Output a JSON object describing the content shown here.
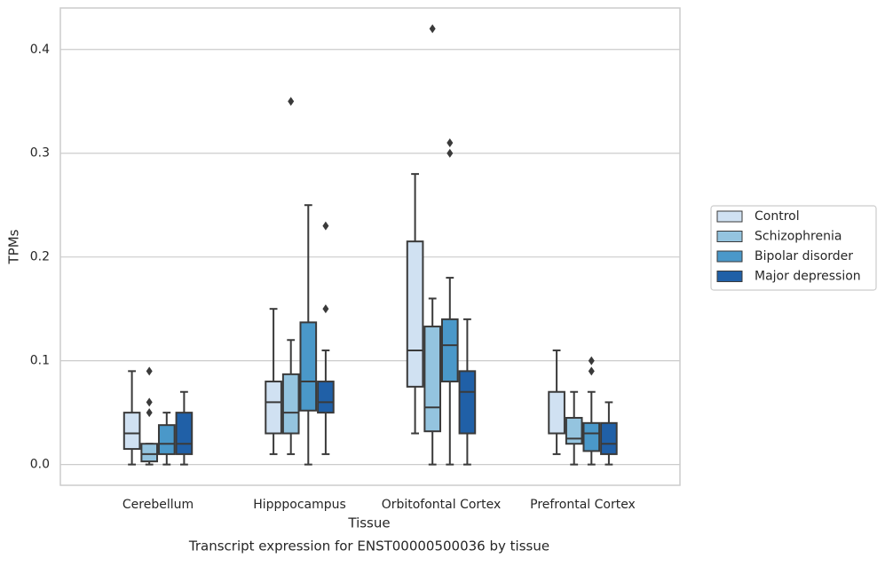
{
  "chart_data": {
    "type": "box",
    "title": "Transcript expression for ENST00000500036 by tissue",
    "x_label": "Tissue",
    "y_label": "TPMs",
    "categories": [
      "Cerebellum",
      "Hipppocampus",
      "Orbitofontal Cortex",
      "Prefrontal Cortex"
    ],
    "ylim": [
      -0.02,
      0.44
    ],
    "yticks": [
      {
        "value": 0,
        "label": "0.0"
      },
      0.1,
      0.2,
      0.3,
      0.4
    ],
    "grid": true,
    "legend": "right",
    "series": [
      {
        "name": "Control",
        "color": "#d0e1f2",
        "values": [
          {
            "whislo": 0,
            "q1": 0.015,
            "med": 0.03,
            "q3": 0.05,
            "whishi": 0.09,
            "fliers": []
          },
          {
            "whislo": 0.01,
            "q1": 0.03,
            "med": 0.06,
            "q3": 0.08,
            "whishi": 0.15,
            "fliers": []
          },
          {
            "whislo": 0.03,
            "q1": 0.075,
            "med": 0.11,
            "q3": 0.215,
            "whishi": 0.28,
            "fliers": []
          },
          {
            "whislo": 0.01,
            "q1": 0.03,
            "med": 0.03,
            "q3": 0.07,
            "whishi": 0.11,
            "fliers": []
          }
        ]
      },
      {
        "name": "Schizophrenia",
        "color": "#94c4df",
        "values": [
          {
            "whislo": 0,
            "q1": 0.003,
            "med": 0.01,
            "q3": 0.02,
            "whishi": 0.02,
            "fliers": [
              0.09,
              0.06,
              0.05
            ]
          },
          {
            "whislo": 0.01,
            "q1": 0.03,
            "med": 0.05,
            "q3": 0.087,
            "whishi": 0.12,
            "fliers": [
              0.35
            ]
          },
          {
            "whislo": 0,
            "q1": 0.032,
            "med": 0.055,
            "q3": 0.133,
            "whishi": 0.16,
            "fliers": [
              0.42
            ]
          },
          {
            "whislo": 0,
            "q1": 0.02,
            "med": 0.025,
            "q3": 0.045,
            "whishi": 0.07,
            "fliers": []
          }
        ]
      },
      {
        "name": "Bipolar disorder",
        "color": "#4a98c9",
        "values": [
          {
            "whislo": 0,
            "q1": 0.01,
            "med": 0.02,
            "q3": 0.038,
            "whishi": 0.05,
            "fliers": []
          },
          {
            "whislo": 0,
            "q1": 0.052,
            "med": 0.08,
            "q3": 0.137,
            "whishi": 0.25,
            "fliers": []
          },
          {
            "whislo": 0,
            "q1": 0.08,
            "med": 0.115,
            "q3": 0.14,
            "whishi": 0.18,
            "fliers": [
              0.31,
              0.3
            ]
          },
          {
            "whislo": 0,
            "q1": 0.013,
            "med": 0.03,
            "q3": 0.04,
            "whishi": 0.07,
            "fliers": [
              0.1,
              0.09
            ]
          }
        ]
      },
      {
        "name": "Major depression",
        "color": "#2060a7",
        "values": [
          {
            "whislo": 0,
            "q1": 0.01,
            "med": 0.02,
            "q3": 0.05,
            "whishi": 0.07,
            "fliers": []
          },
          {
            "whislo": 0.01,
            "q1": 0.05,
            "med": 0.06,
            "q3": 0.08,
            "whishi": 0.11,
            "fliers": [
              0.23,
              0.15
            ]
          },
          {
            "whislo": 0,
            "q1": 0.03,
            "med": 0.07,
            "q3": 0.09,
            "whishi": 0.14,
            "fliers": []
          },
          {
            "whislo": 0,
            "q1": 0.01,
            "med": 0.02,
            "q3": 0.04,
            "whishi": 0.06,
            "fliers": []
          }
        ]
      }
    ]
  }
}
